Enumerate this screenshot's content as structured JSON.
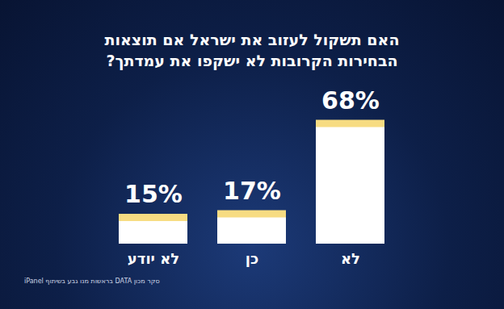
{
  "chart_data": {
    "type": "bar",
    "title": "האם תשקול לעזוב את ישראל אם תוצאות הבחירות הקרובות לא ישקפו את עמדתך?",
    "categories": [
      "לא יודע",
      "כן",
      "לא"
    ],
    "values": [
      15,
      17,
      68
    ],
    "value_labels": [
      "15%",
      "17%",
      "68%"
    ],
    "data_labels": true,
    "color": "#ffffff",
    "ylim": [
      0,
      70
    ],
    "tick_labels": "x",
    "grid": false,
    "source": "סקר מכון DATA בראשות מנו גבע בשיתוף iPanel"
  }
}
